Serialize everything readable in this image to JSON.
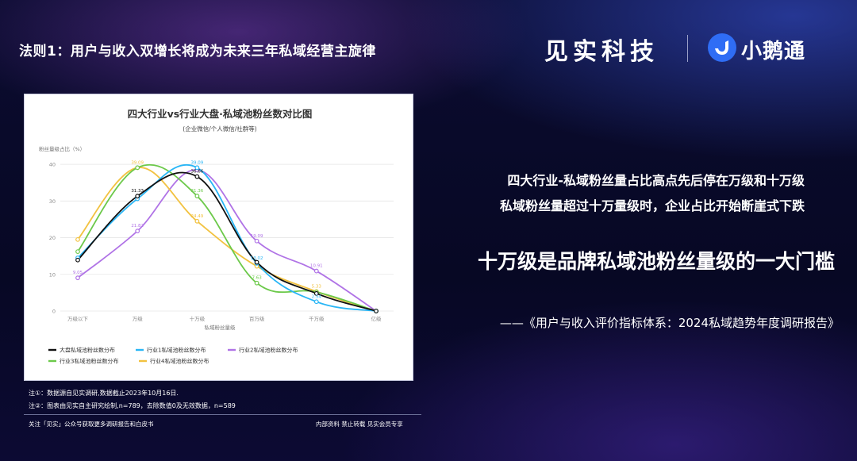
{
  "page": {
    "header_title": "法则1：用户与收入双增长将成为未来三年私域经营主旋律",
    "brand_left": "见实科技",
    "brand_right": "小鹅通",
    "insight_line1": "四大行业-私域粉丝量占比高点先后停在万级和十万级",
    "insight_line2": "私域粉丝量超过十万量级时，企业占比开始断崖式下跌",
    "headline": "十万级是品牌私域池粉丝量级的一大门槛",
    "source": "——《用户与收入评价指标体系：2024私域趋势年度调研报告》",
    "note1": "注①：数据源自见实调研,数据截止2023年10月16日.",
    "note2": "注②：图表由见实自主研究绘制,n=789，去除数值0及无效数据，n=589",
    "footer_left": "关注「见实」公众号获取更多调研报告和白皮书",
    "footer_right": "内部资料  禁止转载    见实会员专享"
  },
  "colors": {
    "series": [
      "#111111",
      "#29b6f6",
      "#b073e6",
      "#6cc94a",
      "#f2c240"
    ],
    "grid": "#e6e6e6",
    "axis_text": "#8a8a8a",
    "logo": "#2f6df5"
  },
  "chart_data": {
    "type": "line",
    "title": "四大行业vs行业大盘·私域池粉丝数对比图",
    "subtitle": "(企业微信/个人微信/社群等)",
    "ylabel": "粉丝量级占比（%）",
    "xlabel": "私域粉丝量级",
    "categories": [
      "万级以下",
      "万级",
      "十万级",
      "百万级",
      "千万级",
      "亿级"
    ],
    "yticks": [
      "0",
      "10",
      "20",
      "30",
      "40"
    ],
    "ylim": [
      0,
      45
    ],
    "legend_position": "bottom-left",
    "series": [
      {
        "name": "大盘私域池粉丝数分布",
        "values": [
          13.9,
          31.33,
          36.66,
          13.3,
          4.8,
          0
        ],
        "labels": [
          "",
          "31.33",
          "36.66",
          "",
          "",
          ""
        ]
      },
      {
        "name": "行业1私域池粉丝数分布",
        "values": [
          14.5,
          30.6,
          39.09,
          13.02,
          2.54,
          0
        ],
        "labels": [
          "",
          "",
          "39.09",
          "13.02",
          "2.54",
          ""
        ]
      },
      {
        "name": "行业2私域池粉丝数分布",
        "values": [
          9.05,
          21.82,
          38.5,
          19.09,
          10.91,
          0
        ],
        "labels": [
          "9.05",
          "21.82",
          "",
          "19.09",
          "10.91",
          ""
        ]
      },
      {
        "name": "行业3私域池粉丝数分布",
        "values": [
          16.2,
          39.09,
          31.36,
          7.63,
          5.2,
          0
        ],
        "labels": [
          "",
          "",
          "31.36",
          "7.63",
          "",
          ""
        ]
      },
      {
        "name": "行业4私域池粉丝数分布",
        "values": [
          19.5,
          39.09,
          24.49,
          12.2,
          5.33,
          0
        ],
        "labels": [
          "",
          "39.09",
          "24.49",
          "",
          "5.33",
          ""
        ]
      }
    ]
  }
}
